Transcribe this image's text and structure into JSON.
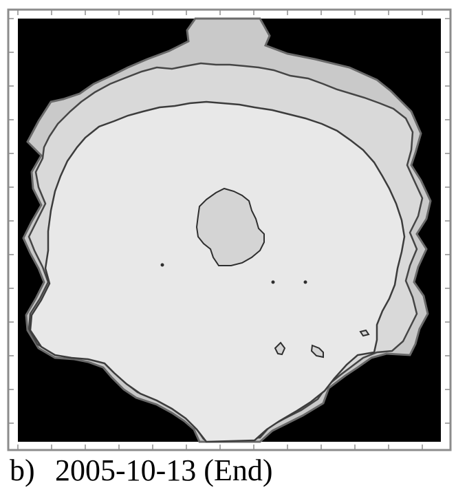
{
  "figure": {
    "panel_label": "b)",
    "caption_text": "2005-10-13 (End)"
  },
  "colors": {
    "background": "#000000",
    "outer_zone": "#c9c9c9",
    "middle_zone": "#d9d9d9",
    "inner_zone": "#e8e8e8",
    "island": "#d4d4d4",
    "contour_line": "#3c3c3c",
    "frame": "#8c8c8c"
  }
}
